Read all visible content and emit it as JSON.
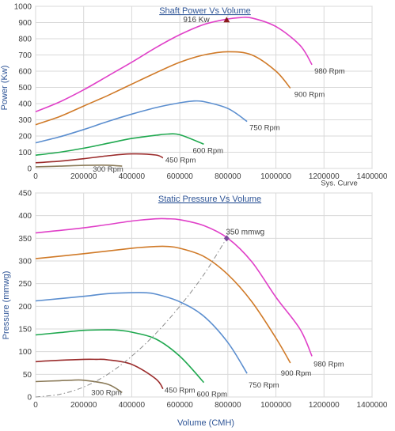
{
  "chart_data": [
    {
      "type": "line",
      "title": "Shaft Power  Vs  Volume",
      "xlabel": "",
      "ylabel": "Power (Kw)",
      "xlim": [
        0,
        1400000
      ],
      "ylim": [
        0,
        1000
      ],
      "x_ticks": [
        0,
        200000,
        400000,
        600000,
        800000,
        1000000,
        1200000,
        1400000
      ],
      "y_ticks": [
        0,
        100,
        200,
        300,
        400,
        500,
        600,
        700,
        800,
        900,
        1000
      ],
      "grid": true,
      "series": [
        {
          "name": "980 Rpm",
          "color": "#e040c8",
          "x": [
            0,
            100000,
            200000,
            300000,
            400000,
            500000,
            600000,
            700000,
            800000,
            850000,
            900000,
            1000000,
            1100000,
            1150000
          ],
          "y": [
            350,
            410,
            485,
            570,
            655,
            745,
            825,
            888,
            922,
            930,
            928,
            875,
            760,
            640
          ]
        },
        {
          "name": "900 Rpm",
          "color": "#d07a28",
          "x": [
            0,
            100000,
            200000,
            300000,
            400000,
            500000,
            600000,
            700000,
            800000,
            900000,
            1000000,
            1060000
          ],
          "y": [
            270,
            320,
            385,
            450,
            520,
            590,
            655,
            700,
            720,
            700,
            600,
            495
          ]
        },
        {
          "name": "750 Rpm",
          "color": "#5b8ecf",
          "x": [
            0,
            100000,
            200000,
            300000,
            400000,
            500000,
            600000,
            650000,
            700000,
            800000,
            880000
          ],
          "y": [
            158,
            195,
            240,
            290,
            335,
            375,
            405,
            415,
            412,
            370,
            290
          ]
        },
        {
          "name": "600 Rpm",
          "color": "#1fa84f",
          "x": [
            0,
            100000,
            200000,
            300000,
            400000,
            500000,
            550000,
            600000,
            700000
          ],
          "y": [
            82,
            100,
            125,
            155,
            185,
            205,
            212,
            208,
            150
          ]
        },
        {
          "name": "450 Rpm",
          "color": "#9b2c2c",
          "x": [
            0,
            100000,
            200000,
            300000,
            400000,
            500000,
            530000
          ],
          "y": [
            35,
            45,
            60,
            78,
            90,
            83,
            65
          ]
        },
        {
          "name": "300 Rpm",
          "color": "#8a7a58",
          "x": [
            0,
            100000,
            200000,
            300000,
            360000
          ],
          "y": [
            10,
            14,
            19,
            20,
            14
          ]
        }
      ],
      "annotations": [
        {
          "text": "916  Kw",
          "x": 795000,
          "y": 916,
          "marker": "triangle",
          "color": "#8b1a1a"
        }
      ]
    },
    {
      "type": "line",
      "title": "Static Pressure  Vs  Volume",
      "xlabel": "Volume (CMH)",
      "ylabel": "Pressure (mmwg)",
      "xlim": [
        0,
        1400000
      ],
      "ylim": [
        0,
        450
      ],
      "x_ticks": [
        0,
        200000,
        400000,
        600000,
        800000,
        1000000,
        1200000,
        1400000
      ],
      "y_ticks": [
        0,
        50,
        100,
        150,
        200,
        250,
        300,
        350,
        400,
        450
      ],
      "grid": true,
      "series": [
        {
          "name": "980 Rpm",
          "color": "#e040c8",
          "x": [
            0,
            200000,
            400000,
            500000,
            550000,
            600000,
            700000,
            800000,
            900000,
            1000000,
            1100000,
            1150000
          ],
          "y": [
            362,
            373,
            388,
            393,
            393,
            391,
            378,
            350,
            298,
            220,
            150,
            90
          ]
        },
        {
          "name": "900 Rpm",
          "color": "#d07a28",
          "x": [
            0,
            200000,
            400000,
            500000,
            550000,
            600000,
            700000,
            800000,
            900000,
            1000000,
            1060000
          ],
          "y": [
            305,
            316,
            328,
            332,
            332,
            328,
            310,
            270,
            210,
            130,
            75
          ]
        },
        {
          "name": "750 Rpm",
          "color": "#5b8ecf",
          "x": [
            0,
            200000,
            300000,
            400000,
            450000,
            500000,
            600000,
            700000,
            800000,
            880000
          ],
          "y": [
            212,
            222,
            228,
            230,
            230,
            227,
            210,
            178,
            120,
            52
          ]
        },
        {
          "name": "600 Rpm",
          "color": "#1fa84f",
          "x": [
            0,
            100000,
            200000,
            300000,
            350000,
            400000,
            500000,
            600000,
            700000
          ],
          "y": [
            137,
            142,
            147,
            148,
            147,
            143,
            128,
            90,
            32
          ]
        },
        {
          "name": "450 Rpm",
          "color": "#9b2c2c",
          "x": [
            0,
            100000,
            200000,
            250000,
            300000,
            400000,
            500000,
            530000
          ],
          "y": [
            78,
            81,
            83,
            83,
            82,
            72,
            40,
            18
          ]
        },
        {
          "name": "300 Rpm",
          "color": "#8a7a58",
          "x": [
            0,
            100000,
            150000,
            200000,
            300000,
            360000
          ],
          "y": [
            34,
            36,
            37,
            37,
            28,
            10
          ]
        },
        {
          "name": "Sys. Curve",
          "color": "#8c8c8c",
          "dashed": true,
          "x": [
            0,
            100000,
            200000,
            300000,
            400000,
            500000,
            600000,
            700000,
            795000
          ],
          "y": [
            0,
            6,
            22,
            50,
            90,
            140,
            200,
            270,
            350
          ]
        }
      ],
      "annotations": [
        {
          "text": "350  mmwg",
          "x": 795000,
          "y": 350,
          "marker": "diamond",
          "color": "#7a4a9a"
        }
      ]
    }
  ]
}
